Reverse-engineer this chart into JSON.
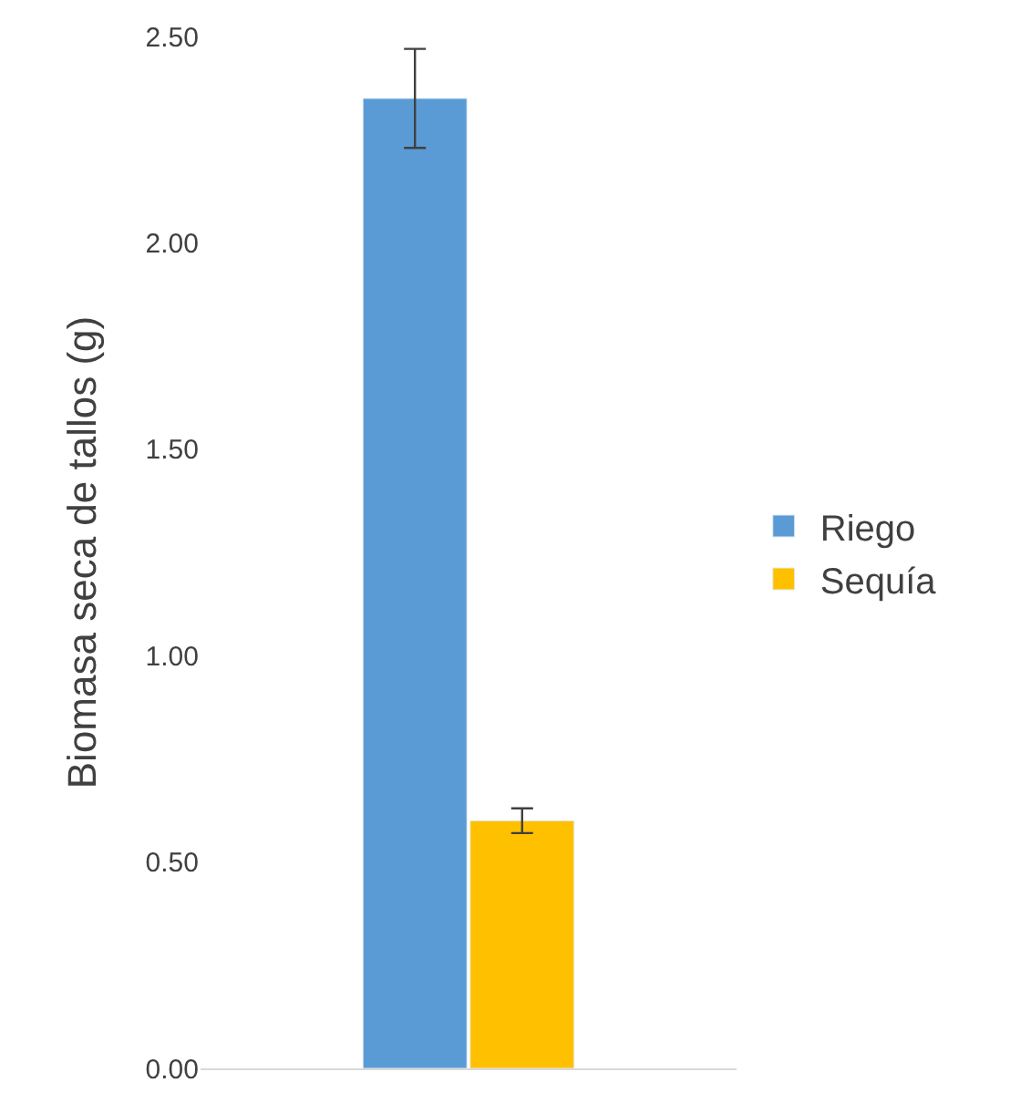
{
  "chart_data": {
    "type": "bar",
    "ylabel": "Biomasa seca de tallos (g)",
    "categories": [
      null
    ],
    "series": [
      {
        "name": "Riego",
        "color": "#5b9bd5",
        "values": [
          2.35
        ],
        "errors": [
          0.12
        ]
      },
      {
        "name": "Sequía",
        "color": "#ffc000",
        "values": [
          0.6
        ],
        "errors": [
          0.03
        ]
      }
    ],
    "ylim": [
      0,
      2.5
    ],
    "yticks": [
      {
        "value": 0,
        "label": "0.00"
      },
      {
        "value": 0.5,
        "label": "0.50"
      },
      {
        "value": 1,
        "label": "1.00"
      },
      {
        "value": 1.5,
        "label": "1.50"
      },
      {
        "value": 2,
        "label": "2.00"
      },
      {
        "value": 2.5,
        "label": "2.50"
      }
    ],
    "grid": false,
    "legend": "right",
    "tick_labels": "y"
  }
}
